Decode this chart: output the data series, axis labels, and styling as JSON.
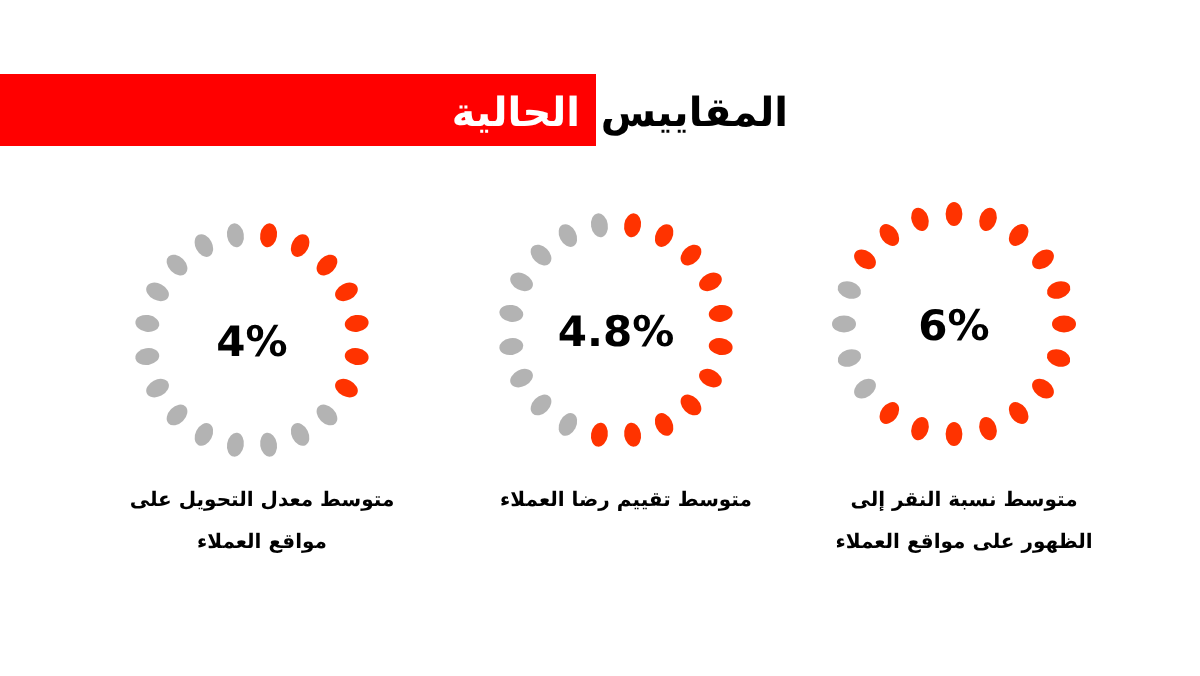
{
  "chart_data": [
    {
      "type": "donut",
      "categories": [
        null,
        null
      ],
      "values": [
        80,
        20
      ],
      "colors": [
        "#ff3300",
        "#b3b3b3"
      ],
      "annotations": [
        "6%"
      ],
      "xlabel": "متوسط نسبة النقر إلى الظهور على مواقع العملاء"
    },
    {
      "type": "donut",
      "title": "المقاييس الحالية",
      "categories": [
        null,
        null
      ],
      "values": [
        55,
        45
      ],
      "colors": [
        "#ff3300",
        "#b3b3b3"
      ],
      "annotations": [
        "4.8%"
      ],
      "xlabel": "متوسط تقييم رضا العملاء"
    },
    {
      "type": "donut",
      "categories": [
        null,
        null
      ],
      "values": [
        35,
        65
      ],
      "colors": [
        "#ff3300",
        "#b3b3b3"
      ],
      "annotations": [
        "4%"
      ],
      "xlabel": "متوسط معدل التحويل على مواقع العملاء"
    }
  ]
}
